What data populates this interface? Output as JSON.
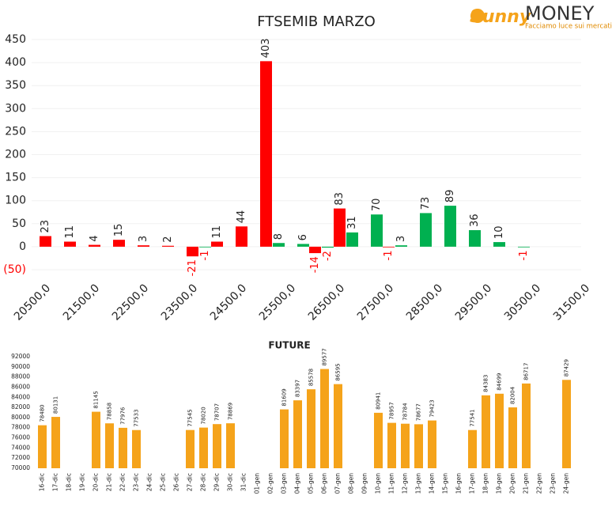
{
  "logo": {
    "brand": "Sunny",
    "brand2": "MONEY",
    "tagline": "Facciamo luce sui mercati"
  },
  "chart_data": [
    {
      "type": "bar",
      "title": "FTSEMIB MARZO",
      "categories": [
        "20500,0",
        null,
        "21500,0",
        null,
        "22500,0",
        null,
        "23500,0",
        null,
        "24500,0",
        null,
        "25500,0",
        null,
        "26500,0",
        null,
        "27500,0",
        null,
        "28500,0",
        null,
        "29500,0",
        null,
        "30500,0",
        null,
        "31500,0"
      ],
      "series": [
        {
          "color": "#ff0000",
          "values": [
            23,
            11,
            4,
            15,
            3,
            2,
            -21,
            11,
            44,
            403,
            null,
            -14,
            83,
            null,
            -1,
            null,
            null,
            null,
            null,
            null,
            null,
            null,
            null
          ]
        },
        {
          "color": "#00b050",
          "values": [
            null,
            null,
            null,
            null,
            null,
            null,
            -1,
            null,
            null,
            8,
            6,
            -2,
            31,
            70,
            3,
            73,
            89,
            36,
            10,
            -1,
            null,
            null,
            null
          ]
        }
      ],
      "negative_color": "#ff0000",
      "ylim": [
        -50,
        450
      ],
      "yticks": [
        {
          "value": -50,
          "label": "(50)"
        },
        0,
        50,
        100,
        150,
        200,
        250,
        300,
        350,
        400,
        450
      ],
      "grid": true
    },
    {
      "type": "bar",
      "title": "FUTURE",
      "categories": [
        "16-dic",
        "17-dic",
        "18-dic",
        "19-dic",
        "20-dic",
        "21-dic",
        "22-dic",
        "23-dic",
        "24-dic",
        "25-dic",
        "26-dic",
        "27-dic",
        "28-dic",
        "29-dic",
        "30-dic",
        "31-dic",
        "01-gen",
        "02-gen",
        "03-gen",
        "04-gen",
        "05-gen",
        "06-gen",
        "07-gen",
        "08-gen",
        "09-gen",
        "10-gen",
        "11-gen",
        "12-gen",
        "13-gen",
        "14-gen",
        "15-gen",
        "16-gen",
        "17-gen",
        "18-gen",
        "19-gen",
        "20-gen",
        "21-gen",
        "22-gen",
        "23-gen",
        "24-gen"
      ],
      "values": [
        78480,
        80131,
        null,
        null,
        81145,
        78858,
        77976,
        77533,
        null,
        null,
        null,
        77545,
        78020,
        78707,
        78869,
        null,
        null,
        null,
        81609,
        83397,
        85578,
        89577,
        86595,
        null,
        null,
        80941,
        78957,
        78784,
        78677,
        79423,
        null,
        null,
        77541,
        84383,
        84699,
        82004,
        86717,
        null,
        null,
        87429
      ],
      "color": "#f5a31a",
      "ylim": [
        70000,
        92000
      ],
      "yticks": [
        70000,
        72000,
        74000,
        76000,
        78000,
        80000,
        82000,
        84000,
        86000,
        88000,
        90000,
        92000
      ],
      "grid": false
    }
  ]
}
